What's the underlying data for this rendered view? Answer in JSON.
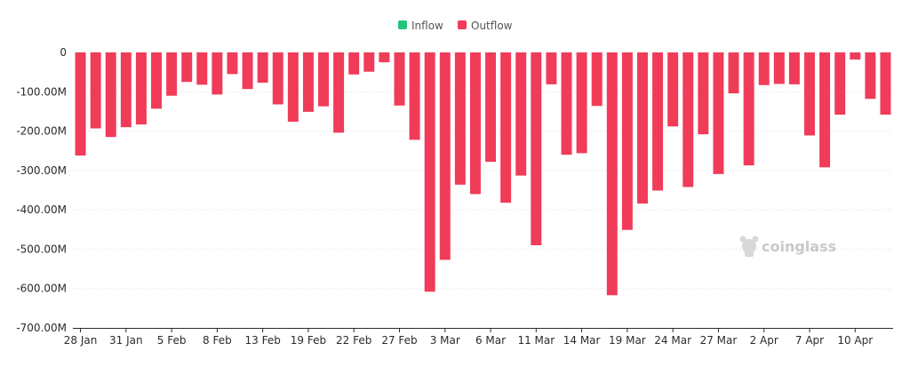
{
  "colors": {
    "inflow": "#22c47a",
    "outflow": "#f03c59",
    "grid": "#eeeeee",
    "axis": "#2b2b2b"
  },
  "legend": [
    {
      "label": "Inflow",
      "color": "#22c47a"
    },
    {
      "label": "Outflow",
      "color": "#f03c59"
    }
  ],
  "watermark": {
    "text": "coinglass",
    "icon": "coinglass-logo-icon"
  },
  "chart_data": {
    "type": "bar",
    "title": "",
    "xlabel": "",
    "ylabel": "",
    "ylim": [
      -700,
      0
    ],
    "y_unit": "M",
    "y_ticks": [
      0,
      -100,
      -200,
      -300,
      -400,
      -500,
      -600,
      -700
    ],
    "y_tick_labels": [
      "0",
      "-100.00M",
      "-200.00M",
      "-300.00M",
      "-400.00M",
      "-500.00M",
      "-600.00M",
      "-700.00M"
    ],
    "x_tick_labels": [
      "28 Jan",
      "31 Jan",
      "5 Feb",
      "8 Feb",
      "13 Feb",
      "19 Feb",
      "22 Feb",
      "27 Feb",
      "3 Mar",
      "6 Mar",
      "11 Mar",
      "14 Mar",
      "19 Mar",
      "24 Mar",
      "27 Mar",
      "2 Apr",
      "7 Apr",
      "10 Apr"
    ],
    "x_tick_positions": [
      0,
      3,
      6,
      9,
      12,
      15,
      18,
      21,
      24,
      27,
      30,
      33,
      36,
      39,
      42,
      45,
      48,
      51
    ],
    "legend_position": "top-center",
    "grid": true,
    "series": [
      {
        "name": "Inflow",
        "values": []
      },
      {
        "name": "Outflow",
        "values": [
          -262,
          -193,
          -215,
          -190,
          -183,
          -143,
          -110,
          -75,
          -82,
          -107,
          -55,
          -93,
          -77,
          -132,
          -176,
          -151,
          -137,
          -204,
          -56,
          -49,
          -25,
          -135,
          -222,
          -608,
          -527,
          -336,
          -360,
          -278,
          -382,
          -313,
          -490,
          -81,
          -260,
          -256,
          -136,
          -617,
          -451,
          -384,
          -351,
          -188,
          -342,
          -208,
          -309,
          -104,
          -287,
          -83,
          -80,
          -81,
          -211,
          -292,
          -158,
          -18,
          -118,
          -158
        ]
      }
    ]
  }
}
